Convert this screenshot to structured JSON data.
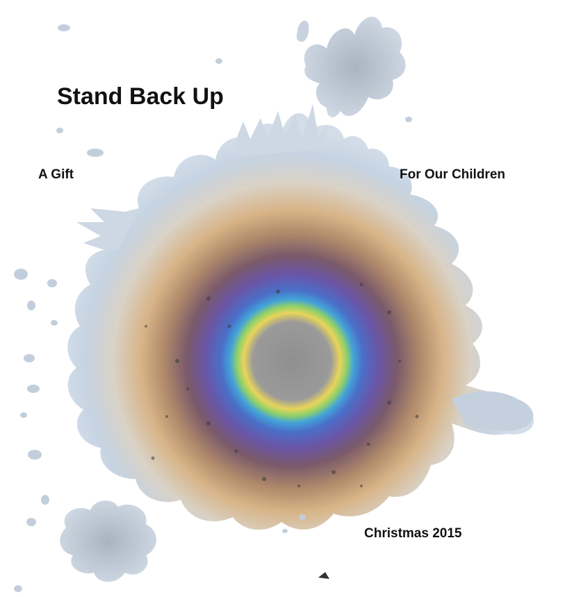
{
  "cover": {
    "title": "Stand Back Up",
    "subtitle_left": "A Gift",
    "subtitle_right": "For Our Children",
    "footer": "Christmas 2015"
  },
  "artwork": {
    "description_icon": "oil-slick-splash-image",
    "colors": {
      "background": "#ffffff",
      "outer_silver": "#c9d5e2",
      "warm_band": "#d9b27a",
      "violet_band": "#6b5aa8",
      "blue_band": "#3f7fd0",
      "rainbow_ring_green": "#9ed25a",
      "core_grey": "#8c8c8c",
      "text": "#111111"
    }
  }
}
